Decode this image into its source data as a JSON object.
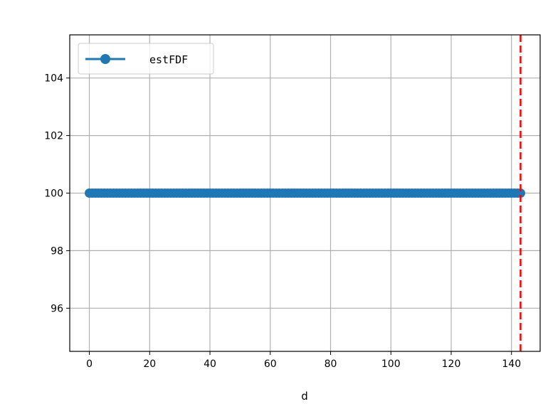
{
  "chart_data": {
    "type": "line",
    "title": "",
    "xlabel": "d",
    "ylabel": "",
    "xlim": [
      -6.5,
      149.5
    ],
    "ylim": [
      94.5,
      105.5
    ],
    "xticks": [
      0,
      20,
      40,
      60,
      80,
      100,
      120,
      140
    ],
    "yticks": [
      96,
      98,
      100,
      102,
      104
    ],
    "grid": true,
    "legend_position": "top-left",
    "series": [
      {
        "name": "estFDF",
        "color": "#1f77b4",
        "marker": "circle",
        "x_start": 0,
        "x_end": 143,
        "x_step": 1,
        "y_constant": 100
      }
    ],
    "vlines": [
      {
        "x": 143,
        "color": "#ff0000",
        "style": "dashed"
      }
    ]
  }
}
